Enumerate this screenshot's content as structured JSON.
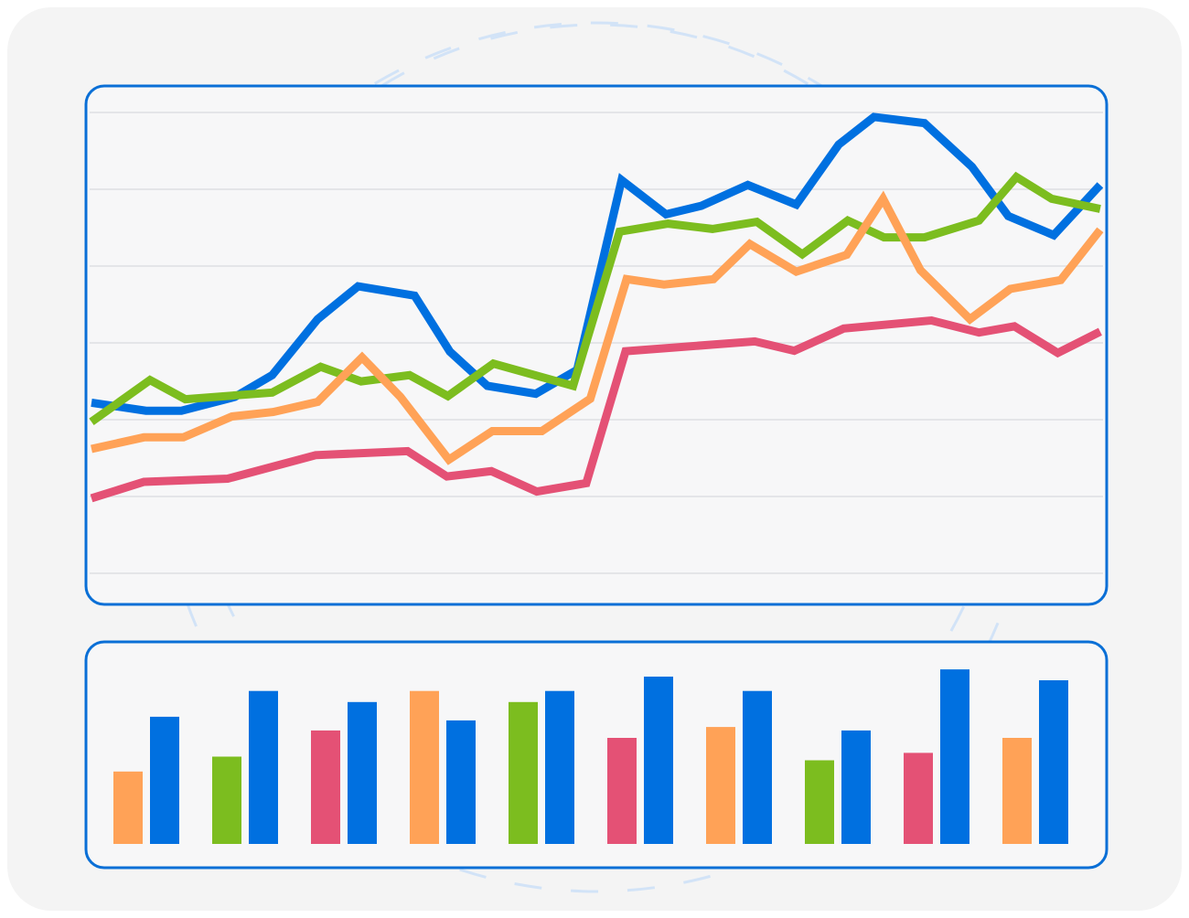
{
  "colors": {
    "card_background": "#f4f4f4",
    "panel_background": "#f7f7f8",
    "panel_border": "#0a6fd6",
    "gridline": "#e4e5e8",
    "decor_dash": "#d2e3f7",
    "blue": "#0070e0",
    "green": "#7cbd1f",
    "orange": "#ffa257",
    "pink": "#e45175"
  },
  "chart_data": [
    {
      "type": "line",
      "grid": true,
      "legend": "none",
      "ylim": [
        0,
        100
      ],
      "series": [
        {
          "color": "blue",
          "points": [
            [
              0.0,
              64.7
            ],
            [
              5.4,
              66.5
            ],
            [
              8.9,
              66.5
            ],
            [
              14.2,
              63.4
            ],
            [
              17.9,
              58.5
            ],
            [
              22.4,
              45.9
            ],
            [
              26.4,
              38.5
            ],
            [
              32.0,
              40.6
            ],
            [
              35.5,
              53.2
            ],
            [
              39.2,
              60.9
            ],
            [
              44.0,
              62.7
            ],
            [
              48.1,
              57.3
            ],
            [
              52.5,
              14.6
            ],
            [
              56.9,
              22.3
            ],
            [
              60.4,
              20.4
            ],
            [
              65.0,
              15.7
            ],
            [
              69.8,
              20.1
            ],
            [
              74.0,
              6.6
            ],
            [
              77.5,
              0.4
            ],
            [
              82.5,
              1.8
            ],
            [
              87.2,
              11.6
            ],
            [
              90.8,
              22.7
            ],
            [
              95.3,
              27.0
            ],
            [
              99.9,
              15.7
            ]
          ]
        },
        {
          "color": "green",
          "points": [
            [
              0.0,
              69.0
            ],
            [
              5.8,
              59.6
            ],
            [
              9.3,
              63.9
            ],
            [
              17.9,
              62.4
            ],
            [
              22.7,
              56.6
            ],
            [
              26.7,
              59.9
            ],
            [
              31.5,
              58.5
            ],
            [
              35.3,
              63.2
            ],
            [
              39.8,
              55.9
            ],
            [
              47.7,
              60.9
            ],
            [
              52.3,
              26.2
            ],
            [
              57.1,
              24.4
            ],
            [
              61.5,
              25.6
            ],
            [
              65.9,
              24.0
            ],
            [
              70.4,
              31.3
            ],
            [
              74.9,
              23.7
            ],
            [
              78.5,
              27.5
            ],
            [
              82.5,
              27.5
            ],
            [
              87.9,
              23.7
            ],
            [
              91.6,
              13.9
            ],
            [
              95.1,
              18.8
            ],
            [
              99.9,
              21.1
            ]
          ]
        },
        {
          "color": "orange",
          "points": [
            [
              0.0,
              75.1
            ],
            [
              5.2,
              72.5
            ],
            [
              9.1,
              72.5
            ],
            [
              13.9,
              67.8
            ],
            [
              18.0,
              66.8
            ],
            [
              22.4,
              64.5
            ],
            [
              26.8,
              54.5
            ],
            [
              30.6,
              63.4
            ],
            [
              35.4,
              77.5
            ],
            [
              39.7,
              71.1
            ],
            [
              44.6,
              71.1
            ],
            [
              49.4,
              63.8
            ],
            [
              53.0,
              36.9
            ],
            [
              56.7,
              38.1
            ],
            [
              61.6,
              36.9
            ],
            [
              65.2,
              29.0
            ],
            [
              69.8,
              35.2
            ],
            [
              74.8,
              31.4
            ],
            [
              78.4,
              18.8
            ],
            [
              82.1,
              34.9
            ],
            [
              87.0,
              45.9
            ],
            [
              91.0,
              39.1
            ],
            [
              96.0,
              37.1
            ],
            [
              99.9,
              25.8
            ]
          ]
        },
        {
          "color": "pink",
          "points": [
            [
              0.0,
              86.2
            ],
            [
              5.2,
              82.5
            ],
            [
              13.5,
              81.8
            ],
            [
              22.2,
              76.5
            ],
            [
              31.3,
              75.6
            ],
            [
              35.2,
              81.3
            ],
            [
              39.6,
              80.1
            ],
            [
              44.1,
              84.7
            ],
            [
              49.0,
              82.8
            ],
            [
              52.9,
              53.1
            ],
            [
              65.7,
              50.9
            ],
            [
              69.6,
              53.0
            ],
            [
              74.5,
              48.0
            ],
            [
              83.2,
              46.2
            ],
            [
              87.9,
              48.9
            ],
            [
              91.4,
              47.5
            ],
            [
              95.7,
              53.5
            ],
            [
              99.9,
              48.7
            ]
          ]
        }
      ]
    },
    {
      "type": "bar",
      "ylim": [
        0,
        100
      ],
      "groups": [
        {
          "bars": [
            {
              "color": "orange",
              "value": 43.3
            },
            {
              "color": "blue",
              "value": 76.0
            }
          ]
        },
        {
          "bars": [
            {
              "color": "green",
              "value": 52.2
            },
            {
              "color": "blue",
              "value": 91.4
            }
          ]
        },
        {
          "bars": [
            {
              "color": "pink",
              "value": 67.8
            },
            {
              "color": "blue",
              "value": 84.8
            }
          ]
        },
        {
          "bars": [
            {
              "color": "orange",
              "value": 91.4
            },
            {
              "color": "blue",
              "value": 73.8
            }
          ]
        },
        {
          "bars": [
            {
              "color": "green",
              "value": 84.8
            },
            {
              "color": "blue",
              "value": 91.4
            }
          ]
        },
        {
          "bars": [
            {
              "color": "pink",
              "value": 63.4
            },
            {
              "color": "blue",
              "value": 100.0
            }
          ]
        },
        {
          "bars": [
            {
              "color": "orange",
              "value": 69.9
            },
            {
              "color": "blue",
              "value": 91.4
            }
          ]
        },
        {
          "bars": [
            {
              "color": "green",
              "value": 50.0
            },
            {
              "color": "blue",
              "value": 67.8
            }
          ]
        },
        {
          "bars": [
            {
              "color": "pink",
              "value": 54.4
            },
            {
              "color": "blue",
              "value": 104.3
            }
          ]
        },
        {
          "bars": [
            {
              "color": "orange",
              "value": 63.4
            },
            {
              "color": "blue",
              "value": 97.8
            }
          ]
        }
      ]
    }
  ]
}
